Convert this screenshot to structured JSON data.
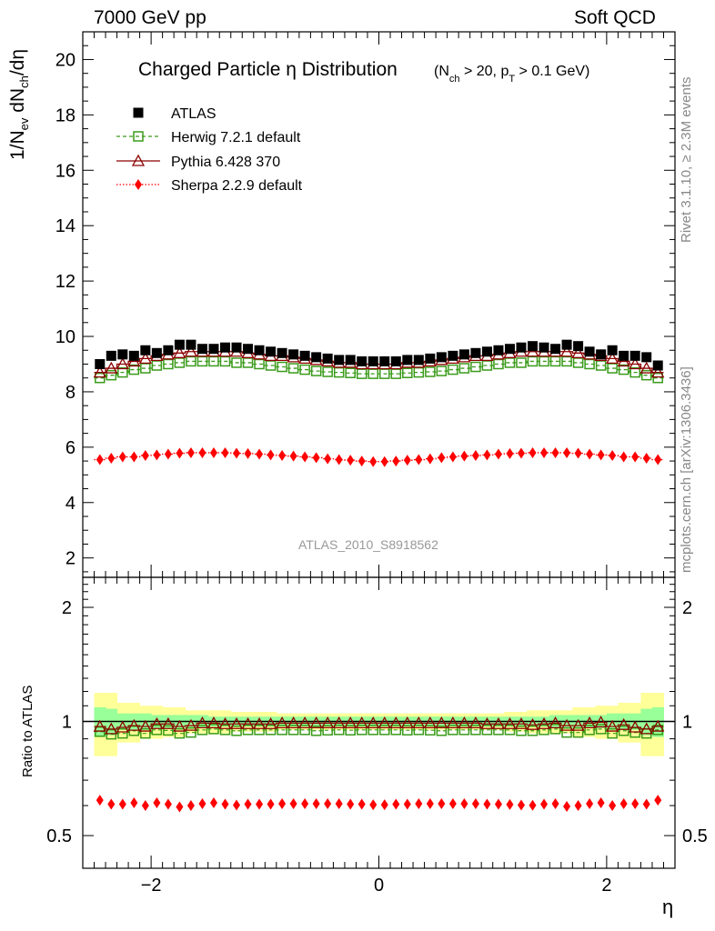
{
  "header": {
    "left": "7000 GeV pp",
    "right": "Soft QCD"
  },
  "side_labels": {
    "rivet": "Rivet 3.1.10, ≥ 2.3M events",
    "mcplots": "mcplots.cern.ch [arXiv:1306.3436]"
  },
  "analysis_tag": "ATLAS_2010_S8918562",
  "colors": {
    "atlas": "#000000",
    "herwig": "#3a9b1a",
    "pythia": "#8b0000",
    "sherpa": "#ff0000",
    "band_inner": "#99ff99",
    "band_outer": "#ffff99"
  },
  "chart_data": [
    {
      "type": "scatter",
      "title": "Charged Particle η Distribution",
      "title_cuts": "(N_ch > 20, p_T > 0.1 GeV)",
      "xlabel": "η",
      "ylabel": "1/N_ev dN_ch/dη",
      "xlim": [
        -2.6,
        2.6
      ],
      "ylim": [
        1.3,
        21
      ],
      "yticks": [
        2,
        4,
        6,
        8,
        10,
        12,
        14,
        16,
        18,
        20
      ],
      "legend_position": "top-left",
      "x": [
        -2.45,
        -2.35,
        -2.25,
        -2.15,
        -2.05,
        -1.95,
        -1.85,
        -1.75,
        -1.65,
        -1.55,
        -1.45,
        -1.35,
        -1.25,
        -1.15,
        -1.05,
        -0.95,
        -0.85,
        -0.75,
        -0.65,
        -0.55,
        -0.45,
        -0.35,
        -0.25,
        -0.15,
        -0.05,
        0.05,
        0.15,
        0.25,
        0.35,
        0.45,
        0.55,
        0.65,
        0.75,
        0.85,
        0.95,
        1.05,
        1.15,
        1.25,
        1.35,
        1.45,
        1.55,
        1.65,
        1.75,
        1.85,
        1.95,
        2.05,
        2.15,
        2.25,
        2.35,
        2.45
      ],
      "series": [
        {
          "name": "ATLAS",
          "marker": "filled-square",
          "values": [
            9.0,
            9.3,
            9.35,
            9.3,
            9.5,
            9.4,
            9.5,
            9.7,
            9.7,
            9.55,
            9.55,
            9.6,
            9.6,
            9.55,
            9.5,
            9.45,
            9.4,
            9.35,
            9.3,
            9.25,
            9.2,
            9.15,
            9.15,
            9.1,
            9.1,
            9.1,
            9.1,
            9.15,
            9.15,
            9.2,
            9.25,
            9.3,
            9.35,
            9.4,
            9.45,
            9.5,
            9.55,
            9.6,
            9.65,
            9.6,
            9.55,
            9.7,
            9.65,
            9.45,
            9.35,
            9.5,
            9.3,
            9.3,
            9.25,
            8.95
          ]
        },
        {
          "name": "Herwig 7.2.1 default",
          "marker": "open-square",
          "line": "dashed",
          "values": [
            8.5,
            8.6,
            8.7,
            8.8,
            8.85,
            8.95,
            9.0,
            9.05,
            9.1,
            9.1,
            9.1,
            9.1,
            9.05,
            9.05,
            9.0,
            8.95,
            8.9,
            8.85,
            8.8,
            8.75,
            8.72,
            8.7,
            8.68,
            8.65,
            8.65,
            8.65,
            8.65,
            8.68,
            8.7,
            8.72,
            8.75,
            8.8,
            8.85,
            8.9,
            8.95,
            9.0,
            9.05,
            9.05,
            9.1,
            9.1,
            9.1,
            9.1,
            9.05,
            9.0,
            8.95,
            8.85,
            8.8,
            8.7,
            8.6,
            8.5
          ]
        },
        {
          "name": "Pythia 6.428 370",
          "marker": "open-triangle",
          "line": "solid",
          "values": [
            8.7,
            8.85,
            9.0,
            9.1,
            9.2,
            9.3,
            9.35,
            9.4,
            9.45,
            9.45,
            9.45,
            9.45,
            9.45,
            9.4,
            9.35,
            9.3,
            9.3,
            9.25,
            9.2,
            9.15,
            9.1,
            9.05,
            9.05,
            9.0,
            9.0,
            9.0,
            9.0,
            9.05,
            9.05,
            9.1,
            9.15,
            9.2,
            9.25,
            9.3,
            9.3,
            9.35,
            9.4,
            9.45,
            9.45,
            9.45,
            9.45,
            9.45,
            9.4,
            9.35,
            9.3,
            9.2,
            9.1,
            9.0,
            8.85,
            8.7
          ]
        },
        {
          "name": "Sherpa 2.2.9 default",
          "marker": "filled-diamond",
          "line": "dotted",
          "values": [
            5.55,
            5.6,
            5.65,
            5.65,
            5.7,
            5.72,
            5.75,
            5.78,
            5.8,
            5.8,
            5.8,
            5.8,
            5.78,
            5.77,
            5.75,
            5.72,
            5.7,
            5.68,
            5.65,
            5.62,
            5.58,
            5.55,
            5.53,
            5.5,
            5.48,
            5.48,
            5.5,
            5.53,
            5.55,
            5.58,
            5.62,
            5.65,
            5.68,
            5.7,
            5.72,
            5.75,
            5.77,
            5.78,
            5.8,
            5.8,
            5.8,
            5.8,
            5.78,
            5.75,
            5.72,
            5.7,
            5.65,
            5.65,
            5.6,
            5.55
          ]
        }
      ]
    },
    {
      "type": "scatter",
      "title": "",
      "xlabel": "η",
      "ylabel": "Ratio to ATLAS",
      "yscale": "log",
      "xlim": [
        -2.6,
        2.6
      ],
      "ylim": [
        0.41,
        2.4
      ],
      "yticks": [
        0.5,
        1,
        2
      ],
      "yticklabels": [
        "0.5",
        "1",
        "2"
      ],
      "xticks": [
        -2,
        0,
        2
      ],
      "xticklabels": [
        "−2",
        "0",
        "2"
      ],
      "band_inner_halfwidth": [
        0.09,
        0.08,
        0.05,
        0.05,
        0.05,
        0.04,
        0.04,
        0.04,
        0.04,
        0.04,
        0.03,
        0.03,
        0.03,
        0.03,
        0.03,
        0.03,
        0.03,
        0.03,
        0.03,
        0.03,
        0.03,
        0.03,
        0.03,
        0.03,
        0.03,
        0.03,
        0.03,
        0.03,
        0.03,
        0.03,
        0.03,
        0.03,
        0.03,
        0.03,
        0.03,
        0.03,
        0.03,
        0.03,
        0.03,
        0.03,
        0.04,
        0.04,
        0.04,
        0.04,
        0.04,
        0.05,
        0.05,
        0.05,
        0.08,
        0.09
      ],
      "band_outer_halfwidth": [
        0.19,
        0.19,
        0.12,
        0.12,
        0.1,
        0.1,
        0.09,
        0.09,
        0.07,
        0.07,
        0.07,
        0.07,
        0.06,
        0.06,
        0.06,
        0.06,
        0.05,
        0.05,
        0.05,
        0.05,
        0.05,
        0.05,
        0.05,
        0.05,
        0.05,
        0.05,
        0.05,
        0.05,
        0.05,
        0.05,
        0.05,
        0.05,
        0.05,
        0.05,
        0.05,
        0.05,
        0.06,
        0.06,
        0.07,
        0.07,
        0.07,
        0.07,
        0.09,
        0.09,
        0.1,
        0.1,
        0.12,
        0.12,
        0.19,
        0.19
      ],
      "series": [
        {
          "name": "Herwig 7.2.1 default",
          "marker": "open-square",
          "values": [
            0.94,
            0.925,
            0.93,
            0.945,
            0.93,
            0.95,
            0.947,
            0.93,
            0.935,
            0.95,
            0.955,
            0.95,
            0.945,
            0.95,
            0.95,
            0.95,
            0.95,
            0.95,
            0.95,
            0.945,
            0.948,
            0.95,
            0.948,
            0.95,
            0.95,
            0.95,
            0.95,
            0.948,
            0.95,
            0.948,
            0.945,
            0.95,
            0.95,
            0.95,
            0.95,
            0.95,
            0.95,
            0.945,
            0.945,
            0.95,
            0.955,
            0.935,
            0.935,
            0.95,
            0.955,
            0.93,
            0.945,
            0.935,
            0.93,
            0.95
          ]
        },
        {
          "name": "Pythia 6.428 370",
          "marker": "open-triangle",
          "values": [
            0.97,
            0.955,
            0.965,
            0.975,
            0.97,
            0.985,
            0.985,
            0.97,
            0.975,
            0.99,
            0.99,
            0.985,
            0.985,
            0.985,
            0.985,
            0.985,
            0.99,
            0.99,
            0.99,
            0.99,
            0.99,
            0.99,
            0.99,
            0.99,
            0.99,
            0.99,
            0.99,
            0.99,
            0.99,
            0.99,
            0.99,
            0.99,
            0.99,
            0.99,
            0.985,
            0.985,
            0.985,
            0.985,
            0.98,
            0.985,
            0.99,
            0.975,
            0.975,
            0.99,
            0.995,
            0.97,
            0.98,
            0.965,
            0.955,
            0.97
          ]
        },
        {
          "name": "Sherpa 2.2.9 default",
          "marker": "filled-diamond",
          "values": [
            0.62,
            0.605,
            0.605,
            0.61,
            0.6,
            0.61,
            0.605,
            0.595,
            0.6,
            0.607,
            0.61,
            0.605,
            0.602,
            0.605,
            0.605,
            0.605,
            0.607,
            0.607,
            0.607,
            0.607,
            0.607,
            0.607,
            0.605,
            0.605,
            0.603,
            0.603,
            0.605,
            0.605,
            0.607,
            0.607,
            0.607,
            0.607,
            0.607,
            0.607,
            0.605,
            0.605,
            0.604,
            0.602,
            0.601,
            0.605,
            0.607,
            0.597,
            0.6,
            0.607,
            0.61,
            0.6,
            0.607,
            0.607,
            0.605,
            0.62
          ]
        }
      ]
    }
  ]
}
